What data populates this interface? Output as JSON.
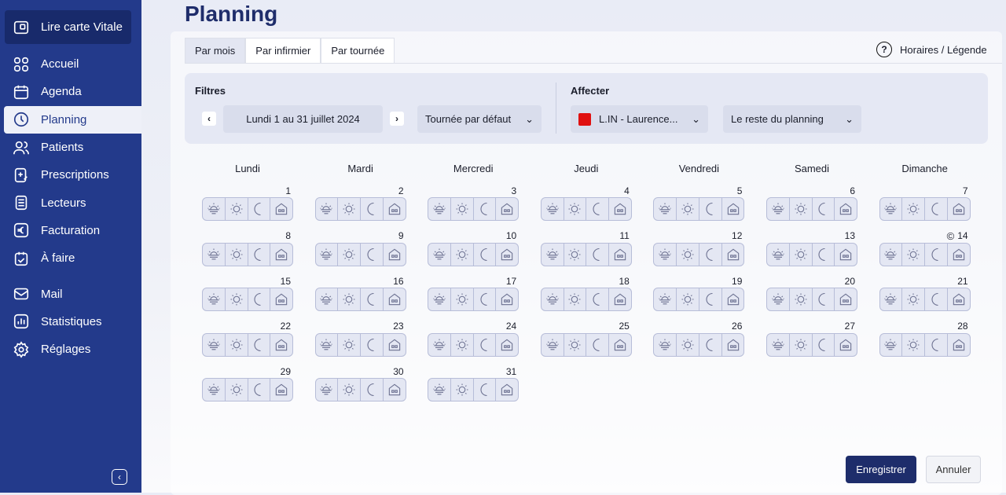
{
  "sidebar": {
    "vitale_label": "Lire carte Vitale",
    "items": [
      {
        "label": "Accueil",
        "icon": "grid-icon"
      },
      {
        "label": "Agenda",
        "icon": "calendar-icon"
      },
      {
        "label": "Planning",
        "icon": "clock-icon",
        "active": true
      },
      {
        "label": "Patients",
        "icon": "users-icon"
      },
      {
        "label": "Prescriptions",
        "icon": "prescription-icon"
      },
      {
        "label": "Lecteurs",
        "icon": "reader-icon"
      },
      {
        "label": "Facturation",
        "icon": "euro-icon"
      },
      {
        "label": "À faire",
        "icon": "todo-icon"
      },
      {
        "label": "Mail",
        "icon": "mail-icon"
      },
      {
        "label": "Statistiques",
        "icon": "chart-icon"
      },
      {
        "label": "Réglages",
        "icon": "gear-icon"
      }
    ],
    "collapse": "‹"
  },
  "page": {
    "title": "Planning"
  },
  "tabs": [
    {
      "label": "Par mois",
      "active": true
    },
    {
      "label": "Par infirmier"
    },
    {
      "label": "Par tournée"
    }
  ],
  "help": {
    "icon": "?",
    "label": "Horaires / Légende"
  },
  "filters": {
    "title": "Filtres",
    "prev": "‹",
    "next": "›",
    "period": "Lundi 1 au 31 juillet 2024",
    "tour": "Tournée par défaut"
  },
  "assign": {
    "title": "Affecter",
    "nurse": "L.IN - Laurence...",
    "nurse_color": "#e01010",
    "scope": "Le reste du planning"
  },
  "calendar": {
    "weekdays": [
      "Lundi",
      "Mardi",
      "Mercredi",
      "Jeudi",
      "Vendredi",
      "Samedi",
      "Dimanche"
    ],
    "first_weekday_index": 0,
    "days_in_month": 31,
    "marked_days": [
      14
    ],
    "slots": [
      "sunrise-icon",
      "sun-icon",
      "moon-icon",
      "home-icon"
    ]
  },
  "actions": {
    "save": "Enregistrer",
    "cancel": "Annuler"
  }
}
